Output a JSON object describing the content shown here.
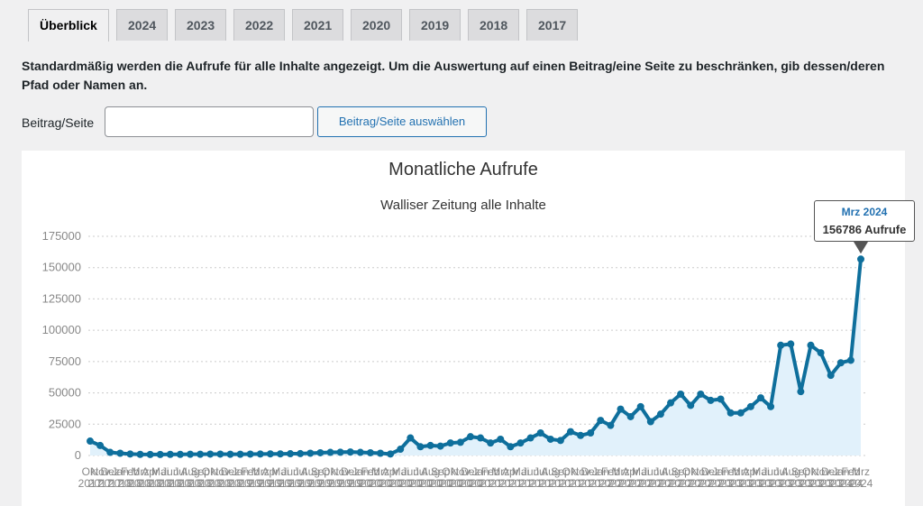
{
  "tabs": [
    "Überblick",
    "2024",
    "2023",
    "2022",
    "2021",
    "2020",
    "2019",
    "2018",
    "2017"
  ],
  "active_tab": 0,
  "description": "Standardmäßig werden die Aufrufe für alle Inhalte angezeigt. Um die Auswertung auf einen Beitrag/eine Seite zu beschränken, gib dessen/deren Pfad oder Namen an.",
  "form": {
    "label": "Beitrag/Seite",
    "button": "Beitrag/Seite auswählen"
  },
  "chart_data": {
    "type": "area",
    "title": "Monatliche Aufrufe",
    "subtitle": "Walliser Zeitung alle Inhalte",
    "color": "#0e6f9c",
    "fill": "#e1f1fb",
    "grid": true,
    "ylim": [
      0,
      175000
    ],
    "yticks": [
      0,
      25000,
      50000,
      75000,
      100000,
      125000,
      150000,
      175000
    ],
    "categories": [
      "Okt 2017",
      "Nov 2017",
      "Dez 2017",
      "Jan 2018",
      "Feb 2018",
      "Mrz 2018",
      "Apr 2018",
      "Mai 2018",
      "Jun 2018",
      "Jul 2018",
      "Aug 2018",
      "Sep 2018",
      "Okt 2018",
      "Nov 2018",
      "Dez 2018",
      "Jan 2019",
      "Feb 2019",
      "Mrz 2019",
      "Apr 2019",
      "Mai 2019",
      "Jun 2019",
      "Jul 2019",
      "Aug 2019",
      "Sep 2019",
      "Okt 2019",
      "Nov 2019",
      "Dez 2019",
      "Jan 2020",
      "Feb 2020",
      "Mrz 2020",
      "Apr 2020",
      "Mai 2020",
      "Jun 2020",
      "Jul 2020",
      "Aug 2020",
      "Sep 2020",
      "Okt 2020",
      "Nov 2020",
      "Dez 2020",
      "Jan 2021",
      "Feb 2021",
      "Mrz 2021",
      "Apr 2021",
      "Mai 2021",
      "Jun 2021",
      "Jul 2021",
      "Aug 2021",
      "Sep 2021",
      "Okt 2021",
      "Nov 2021",
      "Dez 2021",
      "Jan 2022",
      "Feb 2022",
      "Mrz 2022",
      "Apr 2022",
      "Mai 2022",
      "Jun 2022",
      "Jul 2022",
      "Aug 2022",
      "Sep 2022",
      "Okt 2022",
      "Nov 2022",
      "Dez 2022",
      "Jan 2023",
      "Feb 2023",
      "Mrz 2023",
      "Apr 2023",
      "Mai 2023",
      "Jun 2023",
      "Jul 2023",
      "Aug 2023",
      "Sep 2023",
      "Okt 2023",
      "Nov 2023",
      "Dez 2023",
      "Jan 2024",
      "Feb 2024",
      "Mrz 2024"
    ],
    "values": [
      11500,
      8000,
      2500,
      1800,
      1200,
      900,
      800,
      800,
      900,
      900,
      1000,
      1000,
      1100,
      1100,
      1000,
      1000,
      1100,
      1200,
      1300,
      1300,
      1400,
      1500,
      1800,
      2200,
      2500,
      2600,
      2800,
      2500,
      2200,
      1800,
      1200,
      5000,
      14000,
      7000,
      8000,
      7500,
      10000,
      10500,
      15000,
      14000,
      10000,
      13000,
      7000,
      10000,
      14000,
      18000,
      13000,
      12000,
      19000,
      16000,
      18000,
      28000,
      24000,
      37000,
      31000,
      39000,
      27000,
      33000,
      42000,
      49000,
      40000,
      49000,
      44000,
      45000,
      34000,
      34000,
      39000,
      46000,
      39000,
      88000,
      89000,
      51000,
      88000,
      82000,
      64000,
      74000,
      76000,
      156786
    ],
    "tooltip": {
      "category": "Mrz 2024",
      "label": "156786 Aufrufe"
    }
  }
}
